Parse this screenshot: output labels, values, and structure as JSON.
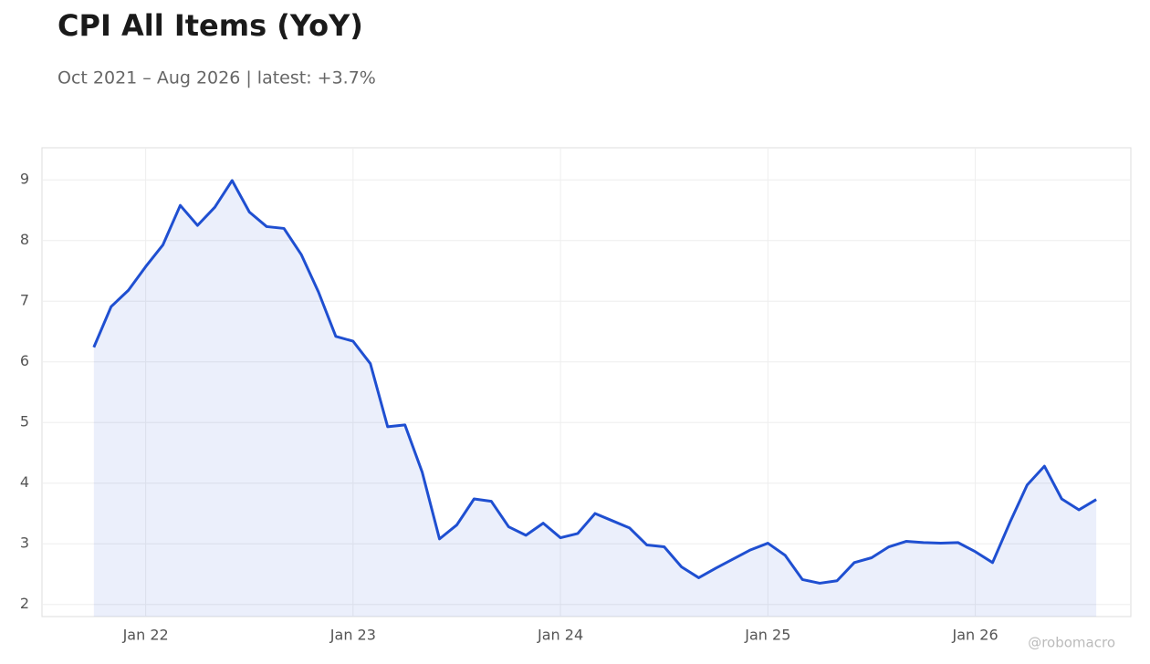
{
  "chart_data": {
    "type": "line",
    "title": "CPI All Items (YoY)",
    "subtitle": "Oct 2021 – Aug 2026 | latest: +3.7%",
    "watermark": "@robomacro",
    "color": "#1f4fd1",
    "fill": true,
    "grid": true,
    "x": [
      "2021-10",
      "2021-11",
      "2021-12",
      "2022-01",
      "2022-02",
      "2022-03",
      "2022-04",
      "2022-05",
      "2022-06",
      "2022-07",
      "2022-08",
      "2022-09",
      "2022-10",
      "2022-11",
      "2022-12",
      "2023-01",
      "2023-02",
      "2023-03",
      "2023-04",
      "2023-05",
      "2023-06",
      "2023-07",
      "2023-08",
      "2023-09",
      "2023-10",
      "2023-11",
      "2023-12",
      "2024-01",
      "2024-02",
      "2024-03",
      "2024-04",
      "2024-05",
      "2024-06",
      "2024-07",
      "2024-08",
      "2024-09",
      "2024-10",
      "2024-11",
      "2024-12",
      "2025-01",
      "2025-02",
      "2025-03",
      "2025-04",
      "2025-05",
      "2025-06",
      "2025-07",
      "2025-08",
      "2025-09",
      "2025-10",
      "2025-11",
      "2025-12",
      "2026-01",
      "2026-02",
      "2026-03",
      "2026-04",
      "2026-05",
      "2026-06",
      "2026-07",
      "2026-08"
    ],
    "values": [
      6.24,
      6.91,
      7.18,
      7.57,
      7.93,
      8.58,
      8.25,
      8.55,
      8.99,
      8.47,
      8.23,
      8.2,
      7.77,
      7.15,
      6.42,
      6.34,
      5.97,
      4.93,
      4.96,
      4.18,
      3.08,
      3.31,
      3.74,
      3.7,
      3.28,
      3.14,
      3.34,
      3.1,
      3.17,
      3.5,
      3.38,
      3.26,
      2.98,
      2.95,
      2.62,
      2.44,
      2.6,
      2.75,
      2.9,
      3.01,
      2.81,
      2.41,
      2.35,
      2.39,
      2.69,
      2.77,
      2.95,
      3.04,
      3.02,
      3.01,
      3.02,
      2.87,
      2.69,
      3.35,
      3.97,
      4.28,
      3.74,
      3.56,
      3.73
    ],
    "xlim": [
      "2021-07",
      "2026-10"
    ],
    "xticks": [
      {
        "value": "2022-01",
        "label": "Jan 22"
      },
      {
        "value": "2023-01",
        "label": "Jan 23"
      },
      {
        "value": "2024-01",
        "label": "Jan 24"
      },
      {
        "value": "2025-01",
        "label": "Jan 25"
      },
      {
        "value": "2026-01",
        "label": "Jan 26"
      }
    ],
    "ylim": [
      1.8,
      9.53
    ],
    "yticks": [
      2,
      3,
      4,
      5,
      6,
      7,
      8,
      9
    ]
  }
}
